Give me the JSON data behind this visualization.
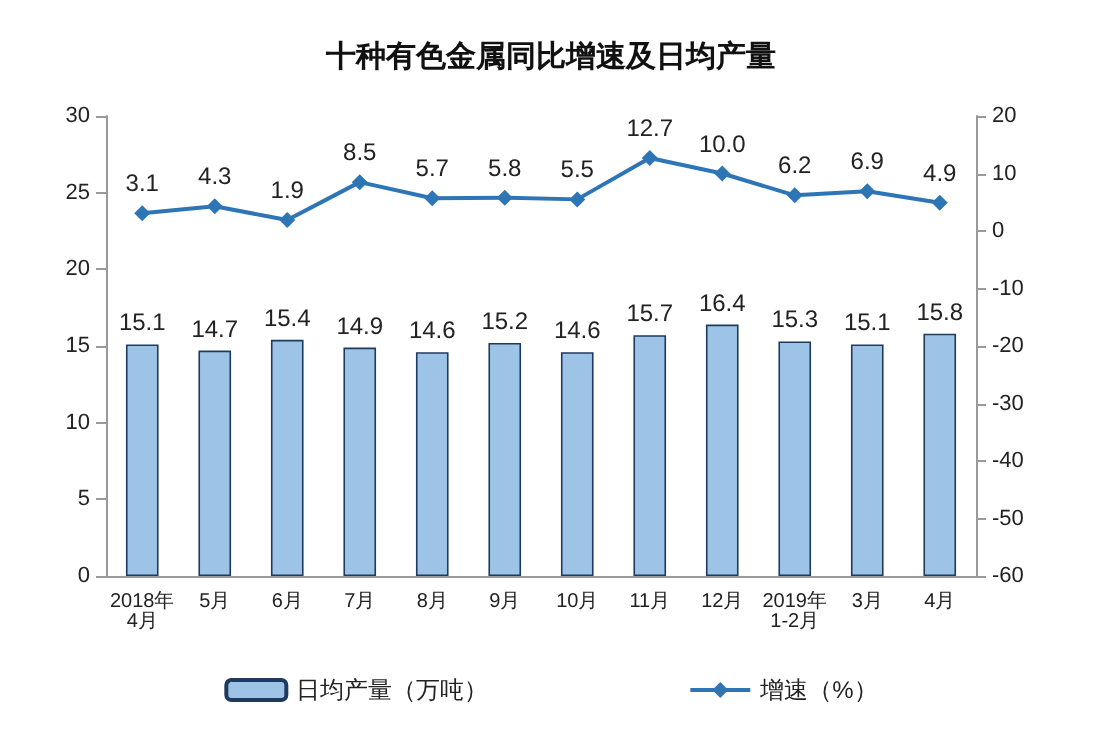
{
  "chart_data": {
    "type": "bar",
    "title": "十种有色金属同比增速及日均产量",
    "categories": [
      "2018年\n4月",
      "5月",
      "6月",
      "7月",
      "8月",
      "9月",
      "10月",
      "11月",
      "12月",
      "2019年\n1-2月",
      "3月",
      "4月"
    ],
    "series": [
      {
        "name": "日均产量（万吨）",
        "color": "#9dc3e6",
        "values": [
          15.1,
          14.7,
          15.4,
          14.9,
          14.6,
          15.2,
          14.6,
          15.7,
          16.4,
          15.3,
          15.1,
          15.8
        ]
      },
      {
        "name": "增速（%）",
        "type": "line",
        "axis": "y2",
        "color": "#2e75b6",
        "values": [
          3.1,
          4.3,
          1.9,
          8.5,
          5.7,
          5.8,
          5.5,
          12.7,
          10.0,
          6.2,
          6.9,
          4.9
        ],
        "value_labels": [
          "3.1",
          "4.3",
          "1.9",
          "8.5",
          "5.7",
          "5.8",
          "5.5",
          "12.7",
          "10.0",
          "6.2",
          "6.9",
          "4.9"
        ]
      }
    ],
    "ylim": [
      0,
      30
    ],
    "yticks": [
      0,
      5,
      10,
      15,
      20,
      25,
      30
    ],
    "y2lim": [
      -60,
      20
    ],
    "y2ticks": [
      -60,
      -50,
      -40,
      -30,
      -20,
      -10,
      0,
      10,
      20
    ],
    "data_labels": true,
    "legend": "bottom",
    "marker": "diamond"
  }
}
